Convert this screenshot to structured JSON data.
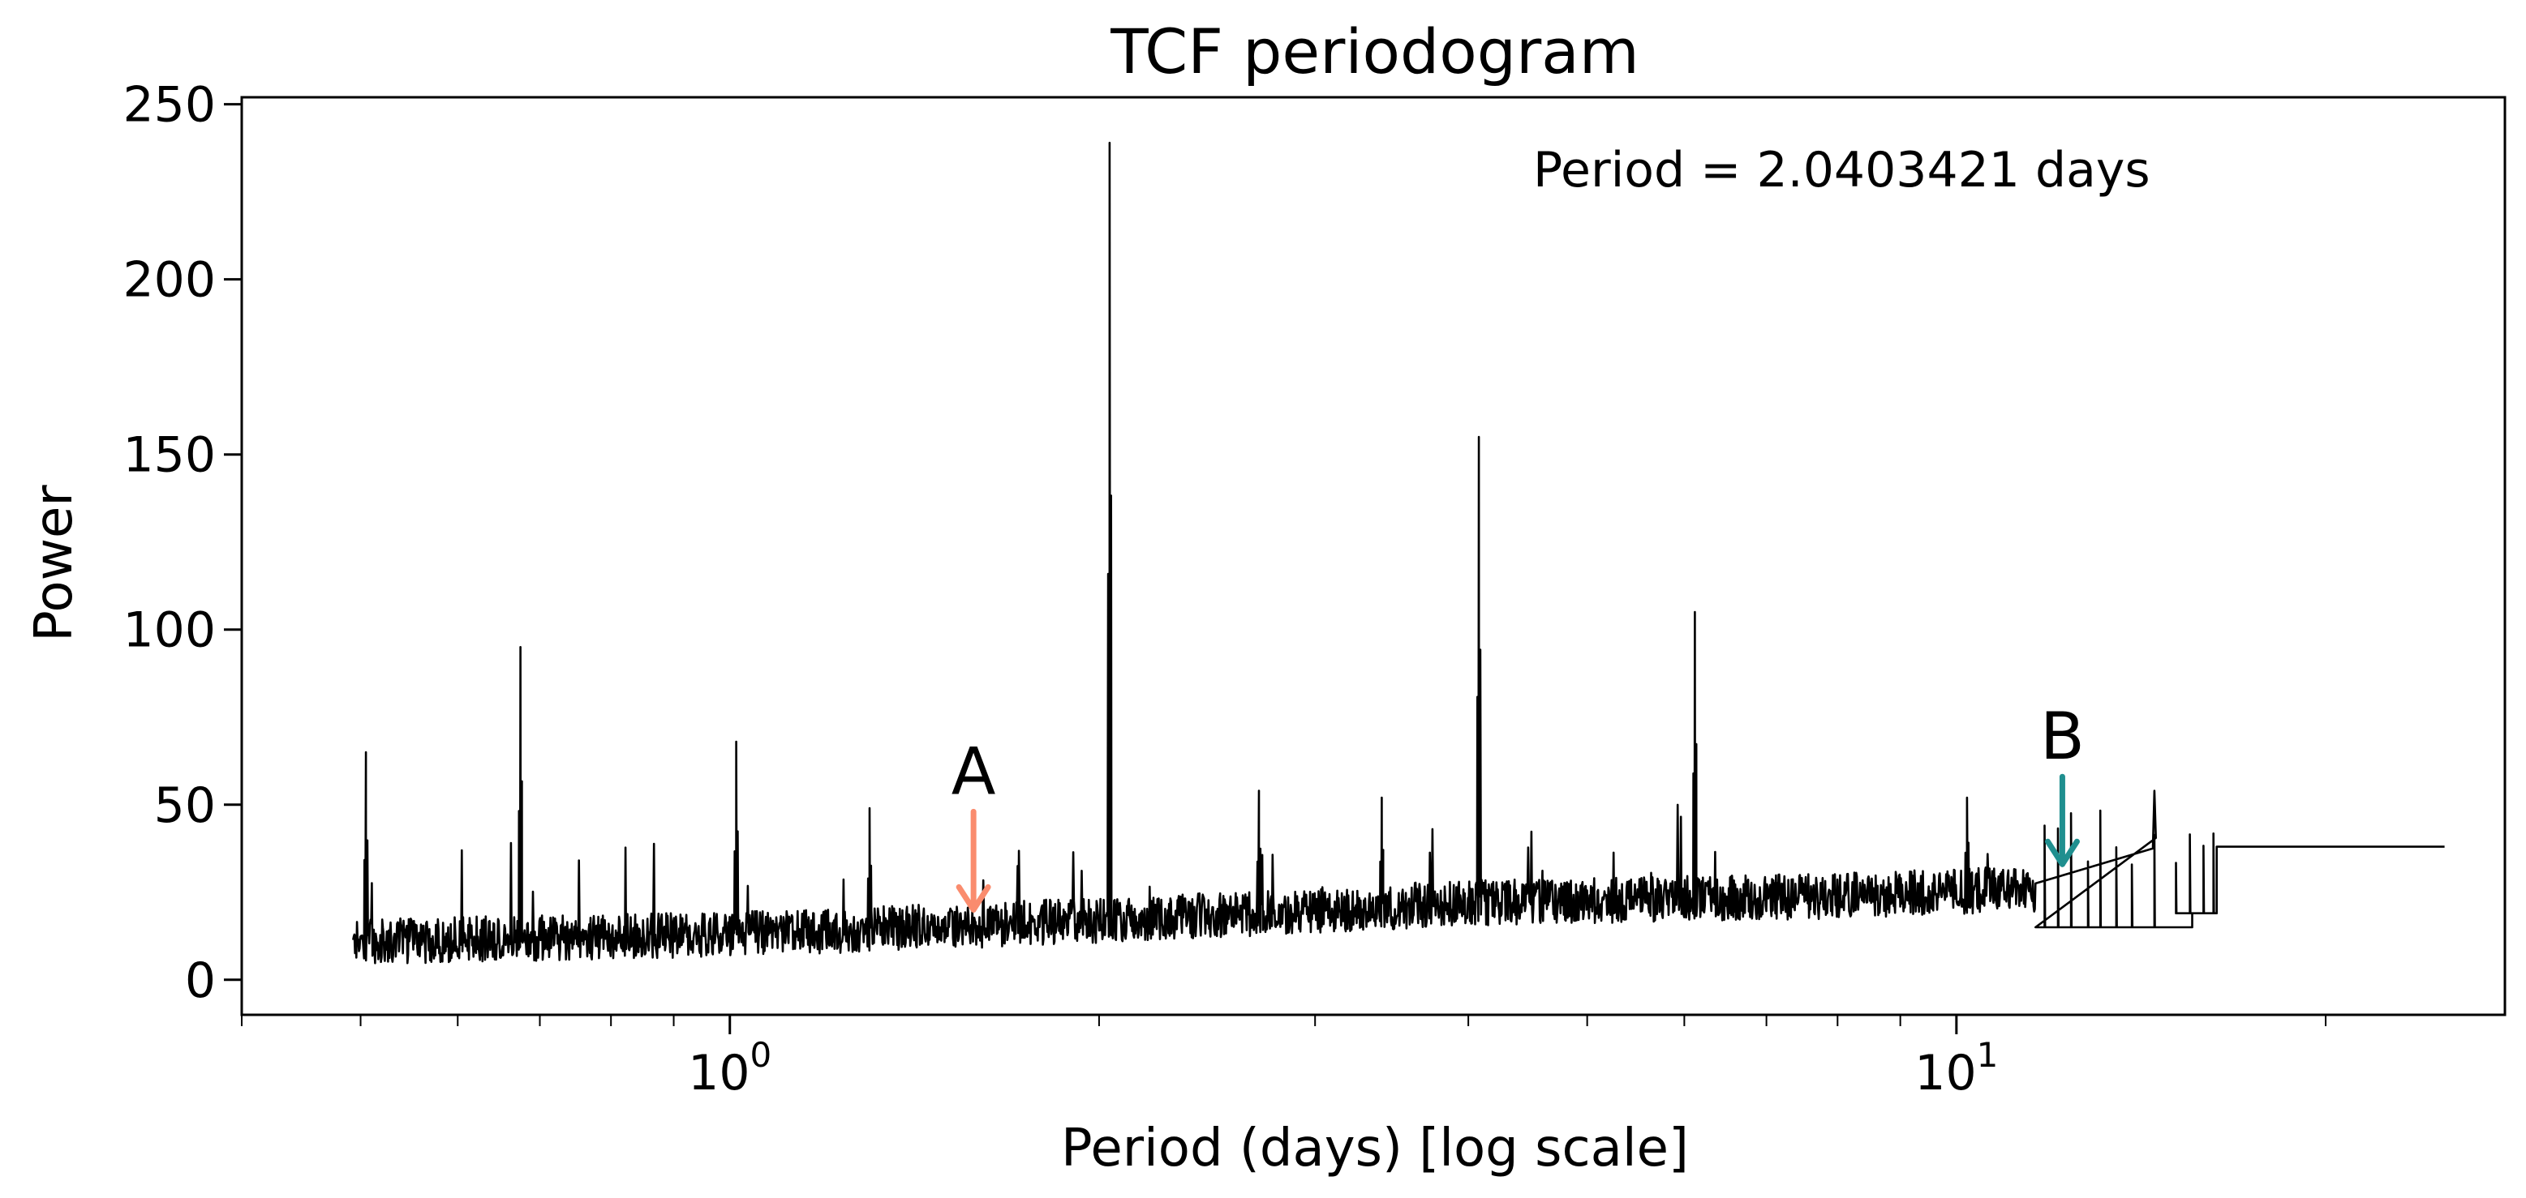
{
  "chart_data": {
    "type": "line",
    "title": "TCF periodogram",
    "xlabel": "Period (days) [log scale]",
    "ylabel": "Power",
    "x_scale": "log",
    "xlim": [
      0.4,
      28.0
    ],
    "ylim": [
      -10,
      252
    ],
    "grid": false,
    "legend": "none",
    "line_color": "#000000",
    "x_ticks": [
      {
        "value": 1,
        "base": "10",
        "exponent": "0"
      },
      {
        "value": 10,
        "base": "10",
        "exponent": "1"
      }
    ],
    "y_ticks": [
      0,
      50,
      100,
      150,
      200,
      250
    ],
    "y_tick_labels": [
      "0",
      "50",
      "100",
      "150",
      "200",
      "250"
    ],
    "annotation": "Period = 2.0403421 days",
    "peaks": [
      {
        "x": 0.505,
        "y": 65
      },
      {
        "x": 0.675,
        "y": 95
      },
      {
        "x": 1.012,
        "y": 68
      },
      {
        "x": 1.3,
        "y": 49
      },
      {
        "x": 2.04,
        "y": 239
      },
      {
        "x": 2.7,
        "y": 54
      },
      {
        "x": 3.4,
        "y": 52
      },
      {
        "x": 4.08,
        "y": 155
      },
      {
        "x": 6.12,
        "y": 105
      },
      {
        "x": 10.2,
        "y": 52
      },
      {
        "x": 14.5,
        "y": 54
      }
    ],
    "baseline": [
      {
        "x": 0.5,
        "y": 9
      },
      {
        "x": 1.0,
        "y": 11
      },
      {
        "x": 2.0,
        "y": 15
      },
      {
        "x": 4.0,
        "y": 20
      },
      {
        "x": 8.0,
        "y": 22
      },
      {
        "x": 11.3,
        "y": 24
      }
    ],
    "step_levels": [
      {
        "x": 11.6,
        "y": 15
      },
      {
        "x": 16.3,
        "y": 19
      },
      {
        "x": 17.3,
        "y": 38
      },
      {
        "x": 25.0,
        "y": 38
      }
    ],
    "markers": [
      {
        "label": "A",
        "x": 1.58,
        "y_tip": 20,
        "y_tail": 48,
        "color": "#fa8c6e"
      },
      {
        "label": "B",
        "x": 12.2,
        "y_tip": 33,
        "y_tail": 58,
        "color": "#1f8f8f"
      }
    ]
  }
}
